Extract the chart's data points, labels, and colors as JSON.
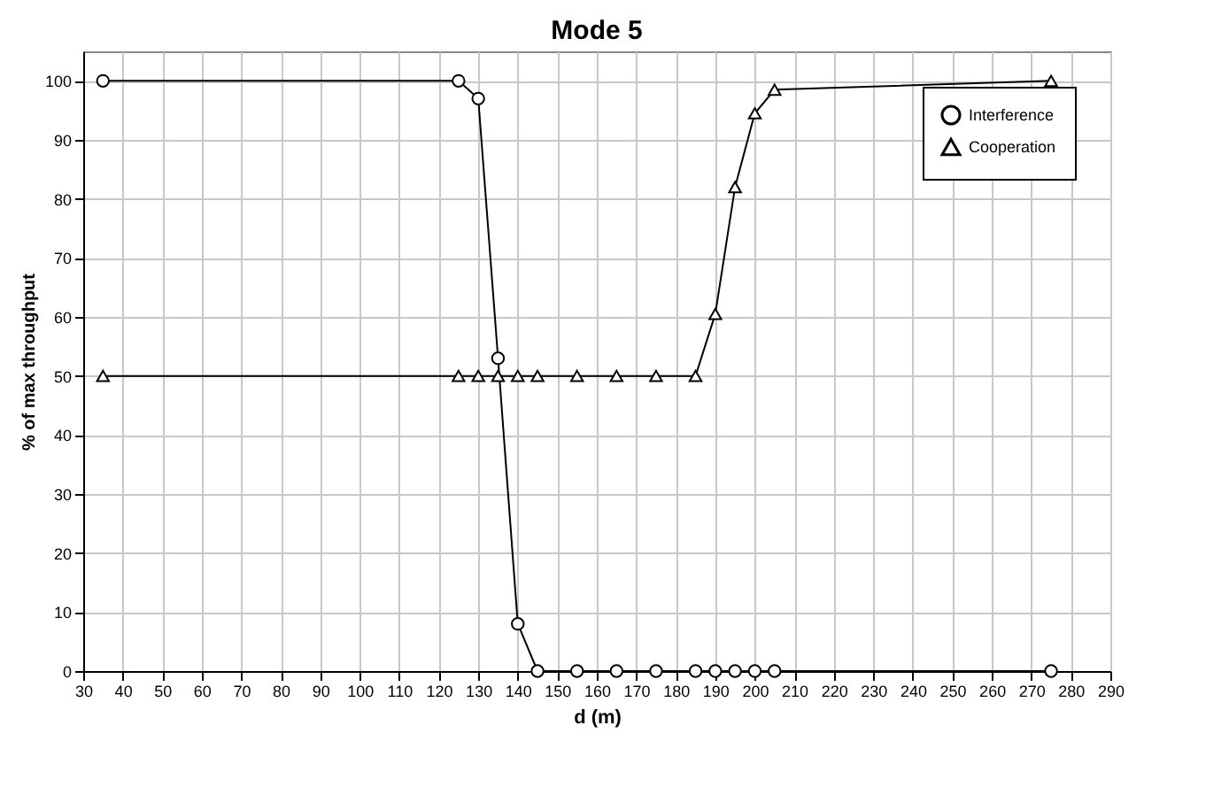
{
  "chart_data": {
    "type": "line",
    "title": "Mode 5",
    "xlabel": "d (m)",
    "ylabel": "% of max throughput",
    "xlim": [
      30,
      290
    ],
    "xticks": [
      30,
      40,
      50,
      60,
      70,
      80,
      90,
      100,
      110,
      120,
      130,
      140,
      150,
      160,
      170,
      180,
      190,
      200,
      210,
      220,
      230,
      240,
      250,
      260,
      270,
      280,
      290
    ],
    "ylim": [
      0,
      105
    ],
    "yticks": [
      0,
      10,
      20,
      30,
      40,
      50,
      60,
      70,
      80,
      90,
      100
    ],
    "x": [
      35,
      125,
      130,
      135,
      140,
      145,
      155,
      165,
      175,
      185,
      190,
      195,
      200,
      205,
      275
    ],
    "series": [
      {
        "name": "Interference",
        "color": "#000000",
        "marker": "circle",
        "values": [
          100,
          100,
          97,
          53,
          8,
          0,
          0,
          0,
          0,
          0,
          0,
          0,
          0,
          0,
          0
        ]
      },
      {
        "name": "Cooperation",
        "color": "#000000",
        "marker": "triangle",
        "values": [
          50,
          50,
          50,
          50,
          50,
          50,
          50,
          50,
          50,
          50,
          60.5,
          82,
          94.5,
          98.5,
          100
        ]
      }
    ],
    "grid": true,
    "legend": "top right",
    "line_style": "solid"
  }
}
